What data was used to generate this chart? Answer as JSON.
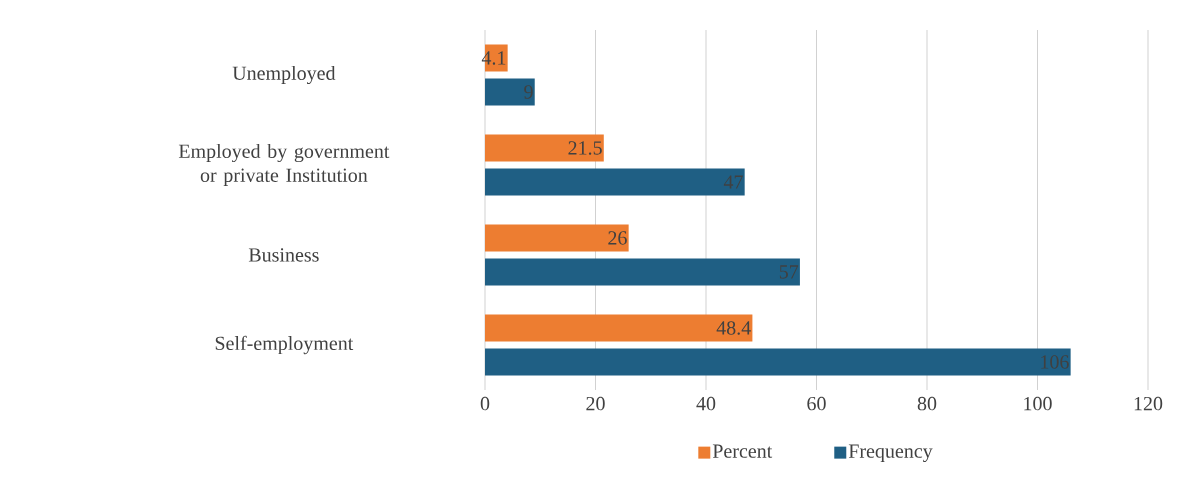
{
  "chart_data": {
    "type": "bar",
    "orientation": "horizontal",
    "categories": [
      "Unemployed",
      "Employed by government or private Institution",
      "Business",
      "Self-employment"
    ],
    "series": [
      {
        "name": "Percent",
        "color": "#ed7d31",
        "values": [
          4.1,
          21.5,
          26,
          48.4
        ]
      },
      {
        "name": "Frequency",
        "color": "#1f5f84",
        "values": [
          9,
          47,
          57,
          106
        ]
      }
    ],
    "xlim": [
      0,
      120
    ],
    "xticks": [
      0,
      20,
      40,
      60,
      80,
      100,
      120
    ],
    "grid": "x",
    "legend": "bottom",
    "data_labels": true
  }
}
